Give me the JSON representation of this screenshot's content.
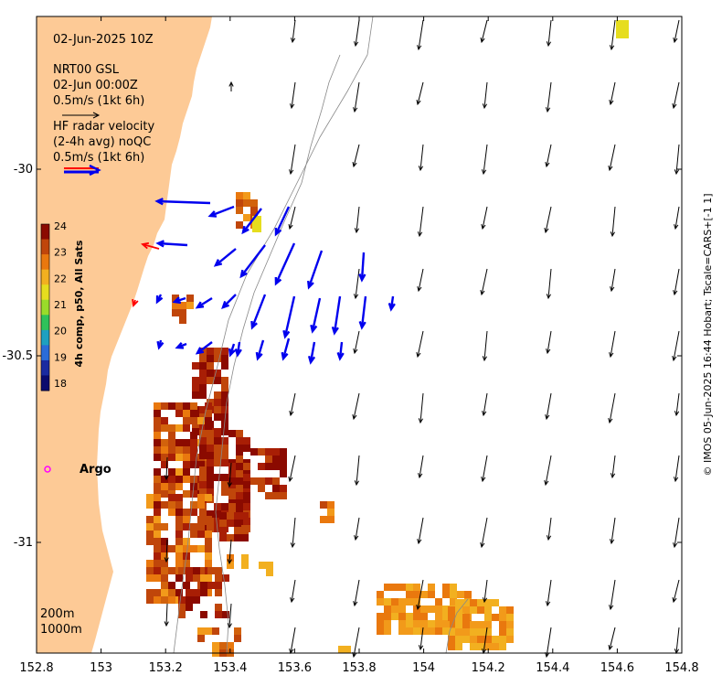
{
  "map": {
    "timestamp": "02-Jun-2025 10Z",
    "product": "NRT00 GSL",
    "product_time": "02-Jun 00:00Z",
    "ref_arrow_label": "0.5m/s (1kt 6h)",
    "hf_label_1": "HF radar velocity",
    "hf_label_2": "(2-4h avg) noQC",
    "hf_ref_label": "0.5m/s (1kt 6h)",
    "argo_label": "Argo",
    "depth_label_1": "200m",
    "depth_label_2": "1000m",
    "credit": "© IMOS 05-Jun-2025 16:44 Hobart; Tscale=CARS+[-1 1]"
  },
  "colorbar": {
    "title": "4h comp, p50, All Sats",
    "ticks": [
      "24",
      "23",
      "22",
      "21",
      "20",
      "19",
      "18"
    ],
    "colors": [
      "#8b0a00",
      "#c0460a",
      "#e9780e",
      "#f2b020",
      "#e6dd1e",
      "#9adc2a",
      "#2fc25a",
      "#1ea0c0",
      "#2a6cd8",
      "#1a2aa0",
      "#0a0a6e"
    ]
  },
  "colors": {
    "land": "#fdca96",
    "hf_arrow": "#0000ee",
    "model_arrow": "#000000",
    "hf_ref_arrow": "#ff0000"
  },
  "axes": {
    "x_ticks": [
      "152.8",
      "153",
      "153.2",
      "153.4",
      "153.6",
      "153.8",
      "154",
      "154.2",
      "154.4",
      "154.6",
      "154.8"
    ],
    "y_ticks": [
      "-30",
      "-30.5",
      "-31"
    ]
  },
  "chart_data": {
    "type": "map",
    "xlim": [
      152.8,
      154.8
    ],
    "ylim": [
      -31.3,
      -29.6
    ],
    "x_ticks": [
      152.8,
      153,
      153.2,
      153.4,
      153.6,
      153.8,
      154,
      154.2,
      154.4,
      154.6,
      154.8
    ],
    "y_ticks": [
      -30,
      -30.5,
      -31
    ],
    "layers": [
      "land",
      "SST 4h composite",
      "HF radar velocity",
      "model velocity",
      "bathymetry contours"
    ],
    "argo": {
      "lon": 152.83,
      "lat": -30.82
    }
  }
}
